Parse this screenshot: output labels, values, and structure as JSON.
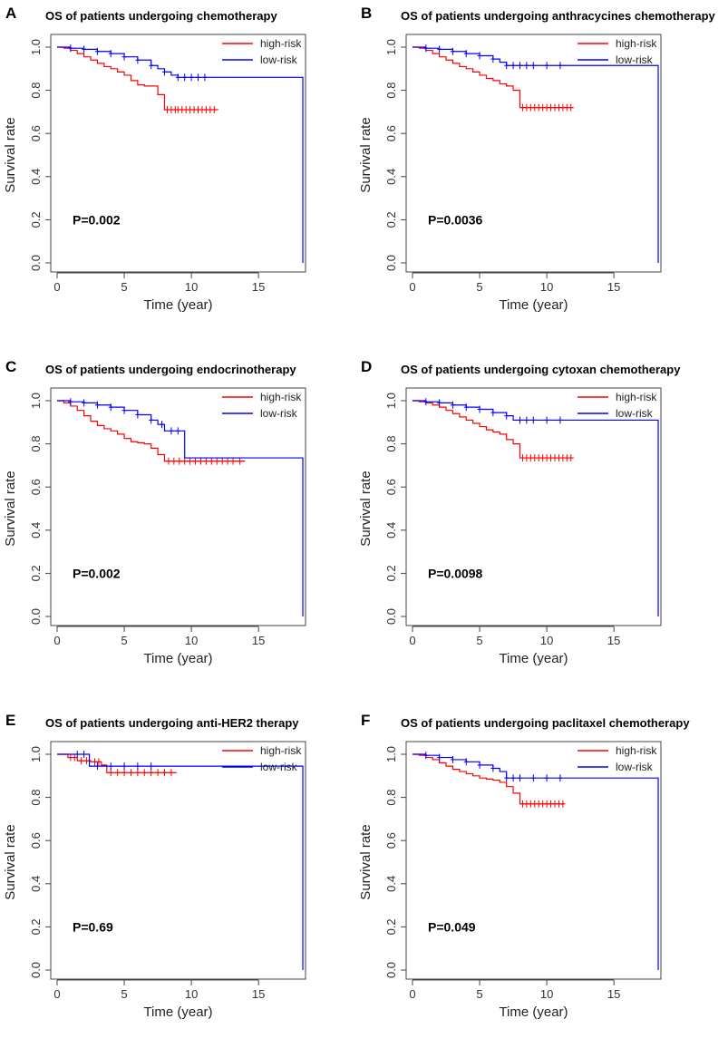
{
  "colors": {
    "high": "#ff0000",
    "low": "#0000ff",
    "axis": "#444444"
  },
  "chart_data": [
    {
      "type": "line",
      "panel": "A",
      "title": "OS of patients undergoing chemotherapy",
      "xlabel": "Time (year)",
      "ylabel": "Survival rate",
      "xlim": [
        0,
        18.5
      ],
      "ylim": [
        0,
        1
      ],
      "xticks": [
        0,
        5,
        10,
        15
      ],
      "xtick_labels": [
        "0",
        "5",
        "10",
        "15"
      ],
      "yticks": [
        0,
        0.2,
        0.4,
        0.6,
        0.8,
        1.0
      ],
      "ytick_labels": [
        "0.0",
        "0.2",
        "0.4",
        "0.6",
        "0.8",
        "1.0"
      ],
      "p_value": "P=0.002",
      "legend": [
        "high-risk",
        "low-risk"
      ],
      "series": [
        {
          "name": "high-risk",
          "color": "#ff0000",
          "x": [
            0,
            0.5,
            1,
            1.5,
            2,
            2.5,
            3,
            3.5,
            4,
            4.5,
            5,
            5.5,
            6,
            6.5,
            7,
            7.5,
            8,
            12
          ],
          "y": [
            1,
            0.995,
            0.985,
            0.97,
            0.955,
            0.94,
            0.925,
            0.91,
            0.9,
            0.885,
            0.87,
            0.845,
            0.825,
            0.82,
            0.82,
            0.78,
            0.71,
            0.71
          ],
          "censor_x": [
            8.2,
            8.5,
            8.8,
            9.0,
            9.3,
            9.6,
            9.9,
            10.2,
            10.5,
            10.8,
            11.1,
            11.4,
            11.7
          ]
        },
        {
          "name": "low-risk",
          "color": "#0000ff",
          "x": [
            0,
            1,
            2,
            3,
            4,
            5,
            6,
            7,
            7.5,
            8,
            8.5,
            9,
            18.3,
            18.3
          ],
          "y": [
            1,
            0.995,
            0.99,
            0.98,
            0.97,
            0.955,
            0.94,
            0.915,
            0.9,
            0.885,
            0.87,
            0.86,
            0.86,
            0
          ],
          "censor_x": [
            1,
            2,
            3,
            4,
            5,
            6,
            7,
            8,
            9,
            9.5,
            10,
            10.5,
            11
          ]
        }
      ]
    },
    {
      "type": "line",
      "panel": "B",
      "title": "OS of patients undergoing anthracycines chemotherapy",
      "xlabel": "Time (year)",
      "ylabel": "Survival rate",
      "xlim": [
        0,
        18.5
      ],
      "ylim": [
        0,
        1
      ],
      "xticks": [
        0,
        5,
        10,
        15
      ],
      "xtick_labels": [
        "0",
        "5",
        "10",
        "15"
      ],
      "yticks": [
        0,
        0.2,
        0.4,
        0.6,
        0.8,
        1.0
      ],
      "ytick_labels": [
        "0.0",
        "0.2",
        "0.4",
        "0.6",
        "0.8",
        "1.0"
      ],
      "p_value": "P=0.0036",
      "legend": [
        "high-risk",
        "low-risk"
      ],
      "series": [
        {
          "name": "high-risk",
          "color": "#ff0000",
          "x": [
            0,
            0.5,
            1,
            1.5,
            2,
            2.5,
            3,
            3.5,
            4,
            4.5,
            5,
            5.5,
            6,
            6.5,
            7,
            7.5,
            8,
            12
          ],
          "y": [
            1,
            0.995,
            0.985,
            0.97,
            0.955,
            0.94,
            0.925,
            0.91,
            0.9,
            0.885,
            0.87,
            0.855,
            0.845,
            0.83,
            0.82,
            0.8,
            0.72,
            0.72
          ],
          "censor_x": [
            8.2,
            8.5,
            8.8,
            9.1,
            9.4,
            9.7,
            10.0,
            10.3,
            10.6,
            10.9,
            11.2,
            11.5,
            11.8
          ]
        },
        {
          "name": "low-risk",
          "color": "#0000ff",
          "x": [
            0,
            1,
            2,
            3,
            4,
            5,
            6,
            6.5,
            7,
            18.3,
            18.3
          ],
          "y": [
            1,
            0.995,
            0.99,
            0.98,
            0.97,
            0.96,
            0.945,
            0.93,
            0.915,
            0.915,
            0
          ],
          "censor_x": [
            1,
            2,
            3,
            4,
            5,
            6,
            7,
            7.5,
            8,
            8.5,
            9,
            10,
            11
          ]
        }
      ]
    },
    {
      "type": "line",
      "panel": "C",
      "title": "OS of patients undergoing endocrinotherapy",
      "xlabel": "Time (year)",
      "ylabel": "Survival rate",
      "xlim": [
        0,
        18.5
      ],
      "ylim": [
        0,
        1
      ],
      "xticks": [
        0,
        5,
        10,
        15
      ],
      "xtick_labels": [
        "0",
        "5",
        "10",
        "15"
      ],
      "yticks": [
        0,
        0.2,
        0.4,
        0.6,
        0.8,
        1.0
      ],
      "ytick_labels": [
        "0.0",
        "0.2",
        "0.4",
        "0.6",
        "0.8",
        "1.0"
      ],
      "p_value": "P=0.002",
      "legend": [
        "high-risk",
        "low-risk"
      ],
      "series": [
        {
          "name": "high-risk",
          "color": "#ff0000",
          "x": [
            0,
            0.5,
            1,
            1.5,
            2,
            2.5,
            3,
            3.5,
            4,
            4.5,
            5,
            5.5,
            6,
            6.5,
            7,
            7.5,
            8,
            14
          ],
          "y": [
            1,
            0.99,
            0.975,
            0.955,
            0.93,
            0.905,
            0.885,
            0.87,
            0.86,
            0.845,
            0.825,
            0.81,
            0.805,
            0.8,
            0.78,
            0.75,
            0.72,
            0.72
          ],
          "censor_x": [
            8.3,
            8.7,
            9.1,
            9.5,
            9.9,
            10.3,
            10.7,
            11.1,
            11.5,
            11.9,
            12.3,
            12.7,
            13.1,
            13.6
          ]
        },
        {
          "name": "low-risk",
          "color": "#0000ff",
          "x": [
            0,
            1,
            2,
            3,
            4,
            5,
            6,
            7,
            7.5,
            8,
            9.5,
            18.3,
            18.3
          ],
          "y": [
            1,
            0.995,
            0.99,
            0.98,
            0.97,
            0.955,
            0.935,
            0.91,
            0.89,
            0.86,
            0.735,
            0.735,
            0
          ],
          "censor_x": [
            1,
            2,
            3,
            4,
            5,
            6,
            7,
            7.8,
            8.5,
            9.0
          ]
        }
      ]
    },
    {
      "type": "line",
      "panel": "D",
      "title": "OS of patients undergoing cytoxan chemotherapy",
      "xlabel": "Time (year)",
      "ylabel": "Survival rate",
      "xlim": [
        0,
        18.5
      ],
      "ylim": [
        0,
        1
      ],
      "xticks": [
        0,
        5,
        10,
        15
      ],
      "xtick_labels": [
        "0",
        "5",
        "10",
        "15"
      ],
      "yticks": [
        0,
        0.2,
        0.4,
        0.6,
        0.8,
        1.0
      ],
      "ytick_labels": [
        "0.0",
        "0.2",
        "0.4",
        "0.6",
        "0.8",
        "1.0"
      ],
      "p_value": "P=0.0098",
      "legend": [
        "high-risk",
        "low-risk"
      ],
      "series": [
        {
          "name": "high-risk",
          "color": "#ff0000",
          "x": [
            0,
            0.5,
            1,
            1.5,
            2,
            2.5,
            3,
            3.5,
            4,
            4.5,
            5,
            5.5,
            6,
            6.5,
            7,
            7.5,
            8,
            12
          ],
          "y": [
            1,
            0.995,
            0.99,
            0.98,
            0.97,
            0.955,
            0.94,
            0.925,
            0.91,
            0.895,
            0.88,
            0.865,
            0.855,
            0.845,
            0.82,
            0.8,
            0.735,
            0.735
          ],
          "censor_x": [
            8.2,
            8.5,
            8.8,
            9.1,
            9.4,
            9.7,
            10.0,
            10.3,
            10.6,
            10.9,
            11.2,
            11.5,
            11.8
          ]
        },
        {
          "name": "low-risk",
          "color": "#0000ff",
          "x": [
            0,
            1,
            2,
            3,
            4,
            5,
            6,
            7,
            7.5,
            18.3,
            18.3
          ],
          "y": [
            1,
            0.995,
            0.99,
            0.98,
            0.97,
            0.96,
            0.945,
            0.93,
            0.91,
            0.91,
            0
          ],
          "censor_x": [
            1,
            2,
            3,
            4,
            5,
            6,
            7,
            8,
            8.5,
            9,
            10,
            11
          ]
        }
      ]
    },
    {
      "type": "line",
      "panel": "E",
      "title": "OS of patients undergoing anti-HER2 therapy",
      "xlabel": "Time (year)",
      "ylabel": "Survival rate",
      "xlim": [
        0,
        18.5
      ],
      "ylim": [
        0,
        1
      ],
      "xticks": [
        0,
        5,
        10,
        15
      ],
      "xtick_labels": [
        "0",
        "5",
        "10",
        "15"
      ],
      "yticks": [
        0,
        0.2,
        0.4,
        0.6,
        0.8,
        1.0
      ],
      "ytick_labels": [
        "0.0",
        "0.2",
        "0.4",
        "0.6",
        "0.8",
        "1.0"
      ],
      "p_value": "P=0.69",
      "legend": [
        "high-risk",
        "low-risk"
      ],
      "series": [
        {
          "name": "high-risk",
          "color": "#ff0000",
          "x": [
            0,
            0.8,
            1.5,
            2.5,
            3.3,
            3.7,
            8.9
          ],
          "y": [
            1,
            0.985,
            0.97,
            0.965,
            0.95,
            0.915,
            0.915
          ],
          "censor_x": [
            1.0,
            1.3,
            1.8,
            2.2,
            2.8,
            3.1,
            4.0,
            4.5,
            5.0,
            5.5,
            6.0,
            6.5,
            7.0,
            7.5,
            8.0,
            8.5
          ]
        },
        {
          "name": "low-risk",
          "color": "#0000ff",
          "x": [
            0,
            2.4,
            18.3,
            18.3
          ],
          "y": [
            1,
            0.945,
            0.945,
            0
          ],
          "censor_x": [
            1.5,
            2.0,
            3.0,
            4.0,
            5.0,
            6.0,
            7.0
          ]
        }
      ]
    },
    {
      "type": "line",
      "panel": "F",
      "title": "OS of patients undergoing paclitaxel chemotherapy",
      "xlabel": "Time (year)",
      "ylabel": "Survival rate",
      "xlim": [
        0,
        18.5
      ],
      "ylim": [
        0,
        1
      ],
      "xticks": [
        0,
        5,
        10,
        15
      ],
      "xtick_labels": [
        "0",
        "5",
        "10",
        "15"
      ],
      "yticks": [
        0,
        0.2,
        0.4,
        0.6,
        0.8,
        1.0
      ],
      "ytick_labels": [
        "0.0",
        "0.2",
        "0.4",
        "0.6",
        "0.8",
        "1.0"
      ],
      "p_value": "P=0.049",
      "legend": [
        "high-risk",
        "low-risk"
      ],
      "series": [
        {
          "name": "high-risk",
          "color": "#ff0000",
          "x": [
            0,
            0.5,
            1,
            1.5,
            2,
            2.5,
            3,
            3.5,
            4,
            4.5,
            5,
            5.5,
            6,
            6.5,
            7,
            7.5,
            8,
            11.3
          ],
          "y": [
            1,
            0.995,
            0.985,
            0.975,
            0.96,
            0.945,
            0.93,
            0.92,
            0.91,
            0.9,
            0.89,
            0.885,
            0.88,
            0.87,
            0.85,
            0.82,
            0.77,
            0.77
          ],
          "censor_x": [
            8.2,
            8.5,
            8.8,
            9.1,
            9.4,
            9.7,
            10.0,
            10.3,
            10.6,
            10.9,
            11.2
          ]
        },
        {
          "name": "low-risk",
          "color": "#0000ff",
          "x": [
            0,
            1,
            2,
            3,
            4,
            5,
            6,
            6.5,
            7,
            18.3,
            18.3
          ],
          "y": [
            1,
            0.995,
            0.985,
            0.975,
            0.965,
            0.95,
            0.935,
            0.92,
            0.89,
            0.89,
            0
          ],
          "censor_x": [
            1,
            2,
            3,
            4,
            5,
            6,
            7,
            7.5,
            8,
            9,
            10,
            11
          ]
        }
      ]
    }
  ]
}
